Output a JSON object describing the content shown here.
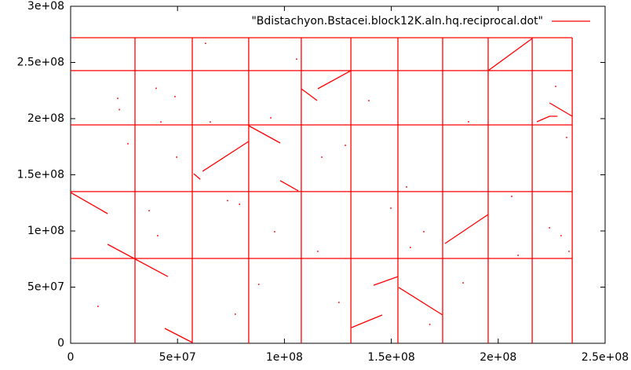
{
  "chart_data": {
    "type": "line",
    "xlim": [
      0,
      250000000
    ],
    "ylim": [
      0,
      300000000
    ],
    "xticks": [
      0,
      {
        "value": 50000000,
        "label": "5e+07"
      },
      {
        "value": 100000000,
        "label": "1e+08"
      },
      {
        "value": 150000000,
        "label": "1.5e+08"
      },
      {
        "value": 200000000,
        "label": "2e+08"
      },
      {
        "value": 250000000,
        "label": "2.5e+08"
      }
    ],
    "yticks": [
      0,
      {
        "value": 50000000,
        "label": "5e+07"
      },
      {
        "value": 100000000,
        "label": "1e+08"
      },
      {
        "value": 150000000,
        "label": "1.5e+08"
      },
      {
        "value": 200000000,
        "label": "2e+08"
      },
      {
        "value": 250000000,
        "label": "2.5e+08"
      },
      {
        "value": 300000000,
        "label": "3e+08"
      }
    ],
    "legend": "top-right",
    "series": [
      {
        "name": "\"Bdistachyon.Bstacei.block12K.aln.hq.reciprocal.dot\"",
        "color": "#ff0000",
        "x": [
          30100000,
          30100000,
          null,
          56900000,
          56900000,
          null,
          83300000,
          83300000,
          null,
          107900000,
          107900000,
          null,
          131100000,
          131100000,
          null,
          153100000,
          153100000,
          null,
          174000000,
          174000000,
          null,
          195300000,
          195300000,
          null,
          215900000,
          215900000,
          null,
          234600000,
          234600000,
          null,
          0,
          234600000,
          null,
          0,
          234600000,
          null,
          0,
          234600000,
          null,
          0,
          234600000,
          null,
          0,
          234600000,
          null,
          0,
          17300000,
          null,
          17300000,
          45500000,
          null,
          44000000,
          56900000,
          null,
          57600000,
          60600000,
          null,
          61700000,
          83300000,
          null,
          83300000,
          98000000,
          null,
          98000000,
          106500000,
          null,
          107900000,
          115300000,
          null,
          115600000,
          131100000,
          null,
          131400000,
          145700000,
          null,
          141700000,
          153100000,
          null,
          153500000,
          174000000,
          null,
          175100000,
          195300000,
          null,
          195300000,
          215900000,
          null,
          218100000,
          224000000,
          227700000,
          null,
          224000000,
          234600000
        ],
        "y": [
          0,
          272000000,
          null,
          0,
          272000000,
          null,
          0,
          272000000,
          null,
          0,
          272000000,
          null,
          0,
          272000000,
          null,
          0,
          272000000,
          null,
          0,
          272000000,
          null,
          0,
          272000000,
          null,
          0,
          272000000,
          null,
          0,
          272000000,
          null,
          75500000,
          75500000,
          null,
          135000000,
          135000000,
          null,
          194400000,
          194400000,
          null,
          242700000,
          242700000,
          null,
          272000000,
          272000000,
          null,
          134300000,
          115400000,
          null,
          88100000,
          59400000,
          null,
          13300000,
          700000,
          null,
          151000000,
          146000000,
          null,
          153100000,
          179700000,
          null,
          193700000,
          178300000,
          null,
          144800000,
          135700000,
          null,
          226600000,
          216100000,
          null,
          226600000,
          242700000,
          null,
          14000000,
          25200000,
          null,
          51700000,
          59400000,
          null,
          49700000,
          25200000,
          null,
          88800000,
          114700000,
          null,
          242700000,
          271300000,
          null,
          197200000,
          202100000,
          202100000,
          null,
          214000000,
          202100000
        ]
      }
    ],
    "dots": {
      "x": [
        22000000,
        22800000,
        26800000,
        36700000,
        40700000,
        40000000,
        42200000,
        49600000,
        48800000,
        63100000,
        65300000,
        73400000,
        79000000,
        77000000,
        88000000,
        93600000,
        95400000,
        105700000,
        117500000,
        115600000,
        125500000,
        128500000,
        139500000,
        149800000,
        157100000,
        158900000,
        165200000,
        168000000,
        183600000,
        186100000,
        206300000,
        209300000,
        224000000,
        229400000,
        232000000,
        226900000,
        233100000,
        12800000
      ],
      "y": [
        218000000,
        208000000,
        177600000,
        118000000,
        95800000,
        227000000,
        197000000,
        165700000,
        219600000,
        267000000,
        197000000,
        127000000,
        123800000,
        25900000,
        52400000,
        200700000,
        99300000,
        253000000,
        165700000,
        81800000,
        36400000,
        176200000,
        216000000,
        120300000,
        139200000,
        85300000,
        99300000,
        16800000,
        53800000,
        197200000,
        130800000,
        78300000,
        102800000,
        95800000,
        183200000,
        228700000,
        81800000,
        32900000
      ]
    }
  }
}
